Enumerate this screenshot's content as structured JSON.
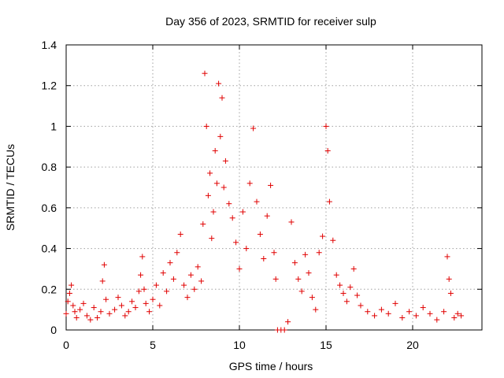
{
  "chart_data": {
    "type": "scatter",
    "title": "Day 356 of 2023, SRMTID for receiver sulp",
    "xlabel": "GPS time / hours",
    "ylabel": "SRMTID / TECUs",
    "xlim": [
      0,
      24
    ],
    "ylim": [
      0,
      1.4
    ],
    "xticks": [
      0,
      5,
      10,
      15,
      20
    ],
    "xtick_labels": [
      "0",
      "5",
      "10",
      "15",
      "20"
    ],
    "yticks": [
      0,
      0.2,
      0.4,
      0.6,
      0.8,
      1.0,
      1.2,
      1.4
    ],
    "ytick_labels": [
      "0",
      "0.2",
      "0.4",
      "0.6",
      "0.8",
      "1",
      "1.2",
      "1.4"
    ],
    "grid": true,
    "marker": "+",
    "marker_color": "#e00000",
    "series": [
      {
        "name": "SRMTID",
        "points": [
          [
            0.0,
            0.08
          ],
          [
            0.1,
            0.14
          ],
          [
            0.2,
            0.18
          ],
          [
            0.3,
            0.22
          ],
          [
            0.4,
            0.12
          ],
          [
            0.5,
            0.09
          ],
          [
            0.6,
            0.06
          ],
          [
            0.8,
            0.1
          ],
          [
            1.0,
            0.13
          ],
          [
            1.2,
            0.07
          ],
          [
            1.4,
            0.05
          ],
          [
            1.6,
            0.11
          ],
          [
            1.8,
            0.06
          ],
          [
            2.0,
            0.09
          ],
          [
            2.1,
            0.24
          ],
          [
            2.2,
            0.32
          ],
          [
            2.3,
            0.15
          ],
          [
            2.5,
            0.08
          ],
          [
            2.8,
            0.1
          ],
          [
            3.0,
            0.16
          ],
          [
            3.2,
            0.12
          ],
          [
            3.4,
            0.07
          ],
          [
            3.6,
            0.09
          ],
          [
            3.8,
            0.14
          ],
          [
            4.0,
            0.11
          ],
          [
            4.2,
            0.19
          ],
          [
            4.3,
            0.27
          ],
          [
            4.4,
            0.36
          ],
          [
            4.5,
            0.2
          ],
          [
            4.6,
            0.13
          ],
          [
            4.8,
            0.09
          ],
          [
            5.0,
            0.15
          ],
          [
            5.2,
            0.22
          ],
          [
            5.4,
            0.12
          ],
          [
            5.6,
            0.28
          ],
          [
            5.8,
            0.19
          ],
          [
            6.0,
            0.33
          ],
          [
            6.2,
            0.25
          ],
          [
            6.4,
            0.38
          ],
          [
            6.6,
            0.47
          ],
          [
            6.8,
            0.22
          ],
          [
            7.0,
            0.16
          ],
          [
            7.2,
            0.27
          ],
          [
            7.4,
            0.2
          ],
          [
            7.6,
            0.31
          ],
          [
            7.8,
            0.24
          ],
          [
            7.9,
            0.52
          ],
          [
            8.0,
            1.26
          ],
          [
            8.1,
            1.0
          ],
          [
            8.2,
            0.66
          ],
          [
            8.3,
            0.77
          ],
          [
            8.4,
            0.45
          ],
          [
            8.5,
            0.58
          ],
          [
            8.6,
            0.88
          ],
          [
            8.7,
            0.72
          ],
          [
            8.8,
            1.21
          ],
          [
            8.9,
            0.95
          ],
          [
            9.0,
            1.14
          ],
          [
            9.1,
            0.7
          ],
          [
            9.2,
            0.83
          ],
          [
            9.4,
            0.62
          ],
          [
            9.6,
            0.55
          ],
          [
            9.8,
            0.43
          ],
          [
            10.0,
            0.3
          ],
          [
            10.2,
            0.58
          ],
          [
            10.4,
            0.4
          ],
          [
            10.6,
            0.72
          ],
          [
            10.8,
            0.99
          ],
          [
            11.0,
            0.63
          ],
          [
            11.2,
            0.47
          ],
          [
            11.4,
            0.35
          ],
          [
            11.6,
            0.56
          ],
          [
            11.8,
            0.71
          ],
          [
            12.0,
            0.38
          ],
          [
            12.1,
            0.25
          ],
          [
            12.2,
            0.0
          ],
          [
            12.4,
            0.0
          ],
          [
            12.6,
            0.0
          ],
          [
            12.8,
            0.04
          ],
          [
            13.0,
            0.53
          ],
          [
            13.2,
            0.33
          ],
          [
            13.4,
            0.25
          ],
          [
            13.6,
            0.19
          ],
          [
            13.8,
            0.37
          ],
          [
            14.0,
            0.28
          ],
          [
            14.2,
            0.16
          ],
          [
            14.4,
            0.1
          ],
          [
            14.6,
            0.38
          ],
          [
            14.8,
            0.46
          ],
          [
            15.0,
            1.0
          ],
          [
            15.1,
            0.88
          ],
          [
            15.2,
            0.63
          ],
          [
            15.4,
            0.44
          ],
          [
            15.6,
            0.27
          ],
          [
            15.8,
            0.22
          ],
          [
            16.0,
            0.18
          ],
          [
            16.2,
            0.14
          ],
          [
            16.4,
            0.21
          ],
          [
            16.6,
            0.3
          ],
          [
            16.8,
            0.17
          ],
          [
            17.0,
            0.12
          ],
          [
            17.4,
            0.09
          ],
          [
            17.8,
            0.07
          ],
          [
            18.2,
            0.1
          ],
          [
            18.6,
            0.08
          ],
          [
            19.0,
            0.13
          ],
          [
            19.4,
            0.06
          ],
          [
            19.8,
            0.09
          ],
          [
            20.2,
            0.07
          ],
          [
            20.6,
            0.11
          ],
          [
            21.0,
            0.08
          ],
          [
            21.4,
            0.05
          ],
          [
            21.8,
            0.09
          ],
          [
            22.0,
            0.36
          ],
          [
            22.1,
            0.25
          ],
          [
            22.2,
            0.18
          ],
          [
            22.4,
            0.06
          ],
          [
            22.6,
            0.08
          ],
          [
            22.8,
            0.07
          ]
        ]
      }
    ]
  }
}
